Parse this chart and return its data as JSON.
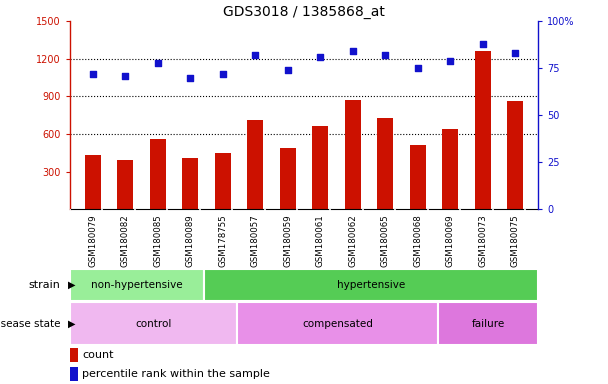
{
  "title": "GDS3018 / 1385868_at",
  "samples": [
    "GSM180079",
    "GSM180082",
    "GSM180085",
    "GSM180089",
    "GSM178755",
    "GSM180057",
    "GSM180059",
    "GSM180061",
    "GSM180062",
    "GSM180065",
    "GSM180068",
    "GSM180069",
    "GSM180073",
    "GSM180075"
  ],
  "counts": [
    430,
    390,
    560,
    410,
    450,
    710,
    490,
    660,
    870,
    730,
    510,
    640,
    1260,
    860
  ],
  "percentiles": [
    72,
    71,
    78,
    70,
    72,
    82,
    74,
    81,
    84,
    82,
    75,
    79,
    88,
    83
  ],
  "ylim_left": [
    0,
    1500
  ],
  "ylim_right": [
    0,
    100
  ],
  "yticks_left": [
    300,
    600,
    900,
    1200,
    1500
  ],
  "yticks_right": [
    0,
    25,
    50,
    75,
    100
  ],
  "bar_color": "#cc1100",
  "dot_color": "#1111cc",
  "grid_color": "black",
  "strain_groups": [
    {
      "label": "non-hypertensive",
      "start": 0,
      "end": 4,
      "color": "#99ee99"
    },
    {
      "label": "hypertensive",
      "start": 4,
      "end": 14,
      "color": "#55cc55"
    }
  ],
  "disease_groups": [
    {
      "label": "control",
      "start": 0,
      "end": 5,
      "color": "#f0b8f0"
    },
    {
      "label": "compensated",
      "start": 5,
      "end": 11,
      "color": "#e890e8"
    },
    {
      "label": "failure",
      "start": 11,
      "end": 14,
      "color": "#dd77dd"
    }
  ],
  "legend_count": "count",
  "legend_percentile": "percentile rank within the sample",
  "bg_color": "#ffffff",
  "tick_bg_color": "#cccccc",
  "left_axis_color": "#cc1100",
  "right_axis_color": "#1111cc"
}
